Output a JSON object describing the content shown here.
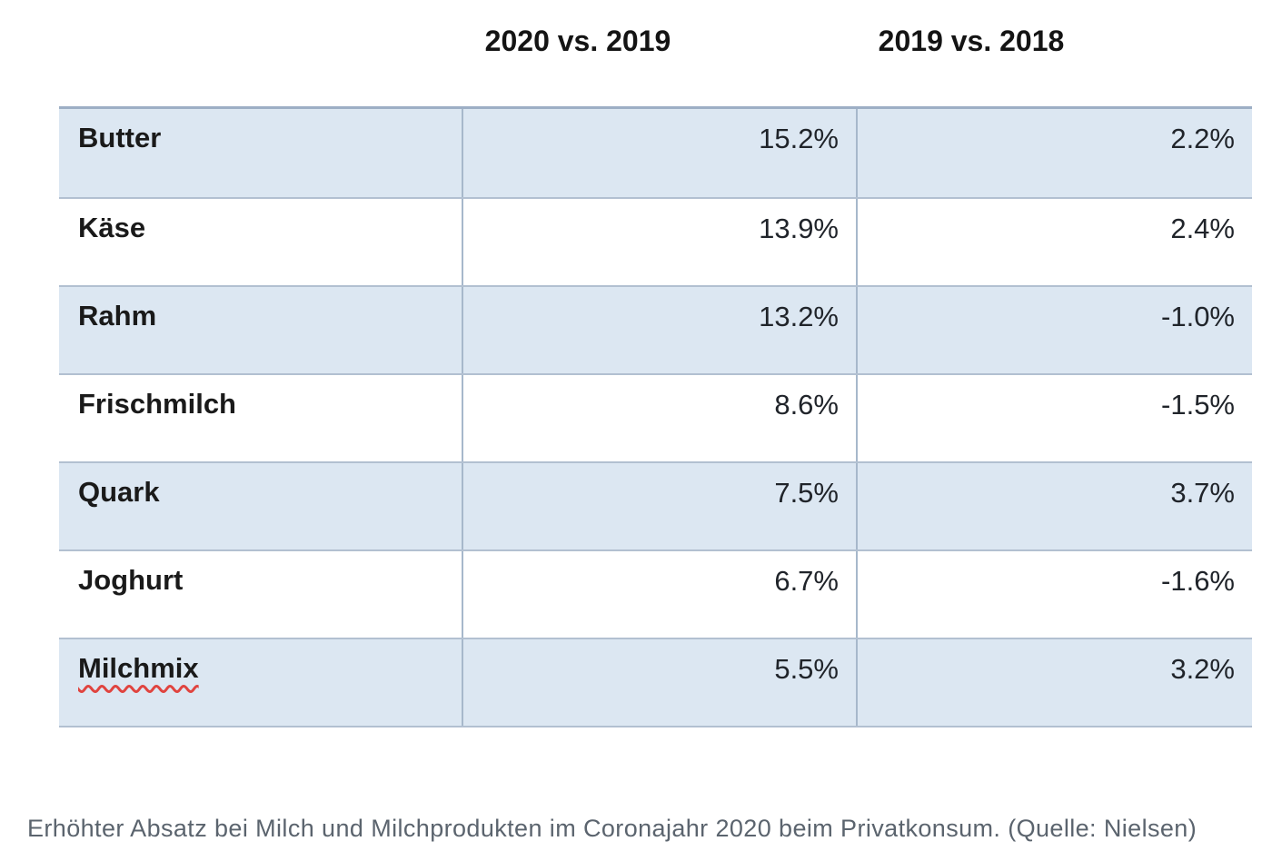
{
  "table": {
    "column_headers": [
      "2020 vs. 2019",
      "2019 vs. 2018"
    ],
    "rows": [
      {
        "product": "Butter",
        "change_2020_vs_2019": "15.2%",
        "change_2019_vs_2018": "2.2%"
      },
      {
        "product": "Käse",
        "change_2020_vs_2019": "13.9%",
        "change_2019_vs_2018": "2.4%"
      },
      {
        "product": "Rahm",
        "change_2020_vs_2019": "13.2%",
        "change_2019_vs_2018": "-1.0%"
      },
      {
        "product": "Frischmilch",
        "change_2020_vs_2019": "8.6%",
        "change_2019_vs_2018": "-1.5%"
      },
      {
        "product": "Quark",
        "change_2020_vs_2019": "7.5%",
        "change_2019_vs_2018": "3.7%"
      },
      {
        "product": "Joghurt",
        "change_2020_vs_2019": "6.7%",
        "change_2019_vs_2018": "-1.6%"
      },
      {
        "product": "Milchmix",
        "change_2020_vs_2019": "5.5%",
        "change_2019_vs_2018": "3.2%"
      }
    ]
  },
  "caption": "Erhöhter Absatz bei Milch und Milchprodukten im Coronajahr 2020 beim Privatkonsum. (Quelle: Nielsen)",
  "colors": {
    "row_alt_background": "#dce7f2",
    "row_background": "#ffffff",
    "border": "#b2c0d1",
    "spellcheck_red": "#e0443f",
    "caption_gray": "#5b646e"
  },
  "chart_data": {
    "type": "table",
    "title": "Erhöhter Absatz bei Milch und Milchprodukten im Coronajahr 2020 beim Privatkonsum",
    "source": "Nielsen",
    "categories": [
      "Butter",
      "Käse",
      "Rahm",
      "Frischmilch",
      "Quark",
      "Joghurt",
      "Milchmix"
    ],
    "series": [
      {
        "name": "2020 vs. 2019",
        "unit": "%",
        "values": [
          15.2,
          13.9,
          13.2,
          8.6,
          7.5,
          6.7,
          5.5
        ]
      },
      {
        "name": "2019 vs. 2018",
        "unit": "%",
        "values": [
          2.2,
          2.4,
          -1.0,
          -1.5,
          3.7,
          -1.6,
          3.2
        ]
      }
    ],
    "layout": {
      "row_striping": true,
      "value_alignment": "right",
      "header_position": "above-table"
    }
  }
}
